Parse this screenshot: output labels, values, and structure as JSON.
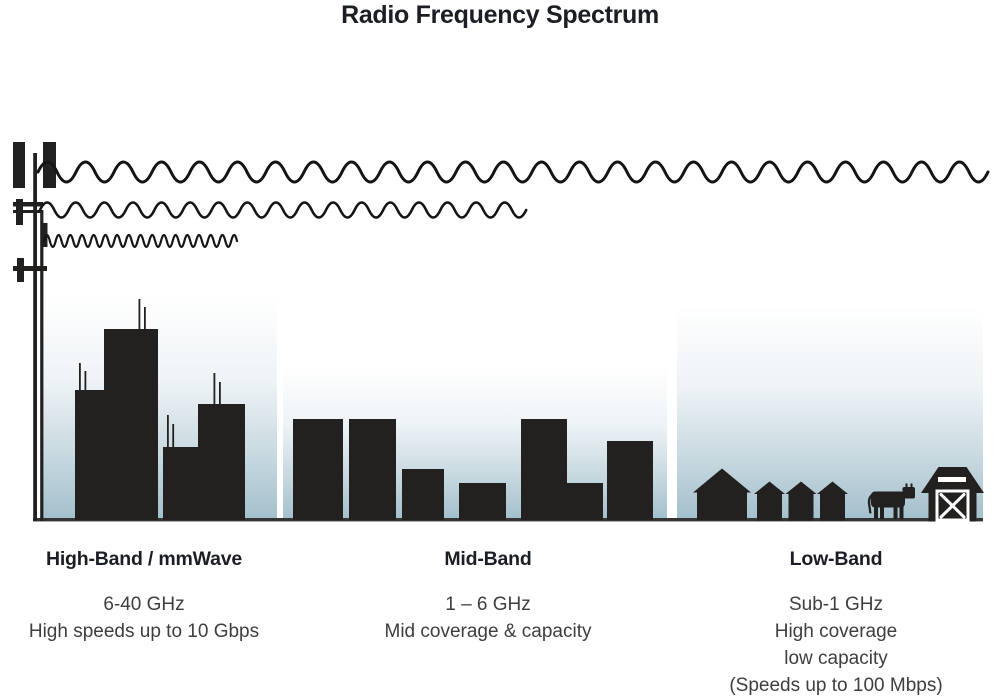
{
  "title": "Radio Frequency Spectrum",
  "colors": {
    "title-text": "#1b1e24",
    "body-text": "#3f3e3e",
    "silhouette": "#232120",
    "wave": "#141414",
    "ground": "#343434",
    "sky-top": "#ffffff",
    "sky-bottom": "#a3bfcc"
  },
  "icons": [
    "cell-tower-icon",
    "long-wavelength-wave-icon",
    "medium-wavelength-wave-icon",
    "short-wavelength-wave-icon",
    "city-skyline-icon",
    "town-skyline-icon",
    "house-icon",
    "cow-icon",
    "barn-icon"
  ],
  "sections": [
    {
      "id": "high-band",
      "heading": "High-Band / mmWave",
      "lines": [
        "6-40 GHz",
        "High speeds up to 10 Gbps"
      ],
      "scene_icon": "city-skyline-icon",
      "wave_reach": "short"
    },
    {
      "id": "mid-band",
      "heading": "Mid-Band",
      "lines": [
        "1 – 6 GHz",
        "Mid coverage & capacity"
      ],
      "scene_icon": "town-skyline-icon",
      "wave_reach": "medium"
    },
    {
      "id": "low-band",
      "heading": "Low-Band",
      "lines": [
        "Sub-1 GHz",
        "High coverage",
        "low capacity",
        "(Speeds up to 100 Mbps)"
      ],
      "scene_icon": "rural-farm-icon",
      "wave_reach": "long"
    }
  ]
}
